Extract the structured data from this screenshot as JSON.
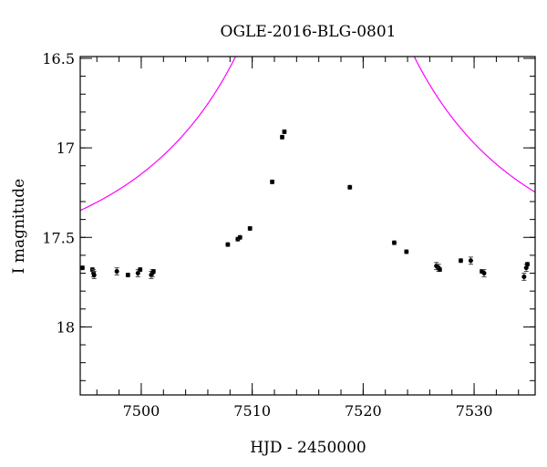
{
  "chart_data": {
    "type": "scatter",
    "title": "OGLE-2016-BLG-0801",
    "xlabel": "HJD - 2450000",
    "ylabel": "I magnitude",
    "xlim": [
      7494.5,
      7535.5
    ],
    "ylim": [
      18.38,
      16.49
    ],
    "y_inverted": true,
    "x_major_ticks": [
      7500,
      7510,
      7520,
      7530
    ],
    "x_minor_step": 2,
    "y_major_ticks": [
      16.5,
      17,
      17.5,
      18
    ],
    "y_tick_labels": [
      "16.5",
      "17",
      "17.5",
      "18"
    ],
    "y_minor_step": 0.1,
    "grid": false,
    "model_color": "#ff00ff",
    "data_color": "#000000",
    "model": {
      "name": "",
      "baseline_mag": 17.72,
      "t0": 7516.55,
      "u0": 0.01,
      "tE": 24
    },
    "series": [
      {
        "x": [
          7494.7,
          7495.6,
          7495.7,
          7495.75,
          7497.8,
          7498.8,
          7499.7,
          7499.9,
          7500.9,
          7501.0,
          7501.1,
          7507.8,
          7508.7,
          7508.9,
          7509.8,
          7511.8,
          7512.7,
          7512.9,
          7518.8,
          7522.8,
          7523.9,
          7526.6,
          7526.8,
          7526.9,
          7528.8,
          7529.7,
          7530.7,
          7530.9,
          7534.5,
          7534.7,
          7534.8
        ],
        "y": [
          17.67,
          17.68,
          17.7,
          17.71,
          17.69,
          17.71,
          17.7,
          17.68,
          17.71,
          17.7,
          17.69,
          17.54,
          17.51,
          17.5,
          17.45,
          17.19,
          16.94,
          16.91,
          17.22,
          17.53,
          17.58,
          17.66,
          17.67,
          17.68,
          17.63,
          17.63,
          17.69,
          17.7,
          17.72,
          17.67,
          17.65
        ],
        "err": [
          0.01,
          0.01,
          0.02,
          0.02,
          0.02,
          0.01,
          0.02,
          0.01,
          0.02,
          0.02,
          0.01,
          0.01,
          0.01,
          0.01,
          0.01,
          0.01,
          0.01,
          0.01,
          0.01,
          0.01,
          0.01,
          0.02,
          0.02,
          0.01,
          0.01,
          0.02,
          0.01,
          0.02,
          0.02,
          0.02,
          0.01
        ]
      }
    ]
  }
}
